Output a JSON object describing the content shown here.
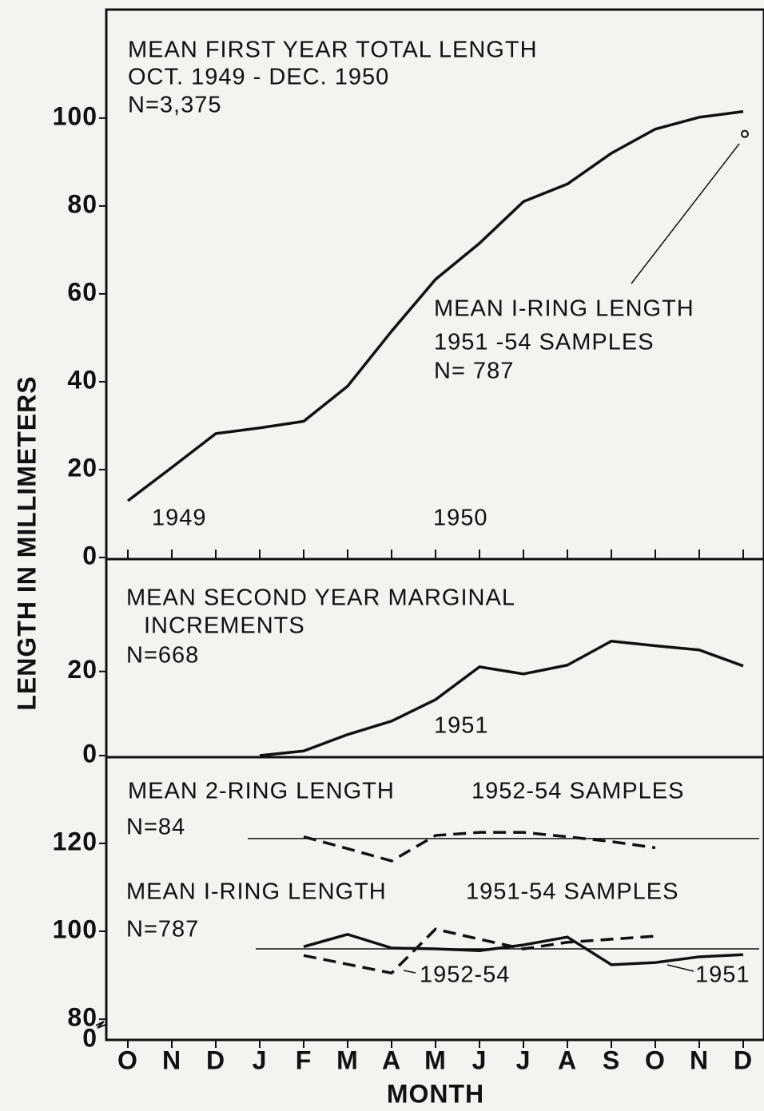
{
  "chart_data": [
    {
      "type": "line",
      "title": [
        "MEAN FIRST YEAR TOTAL LENGTH",
        "OCT. 1949 - DEC. 1950",
        "N=3,375"
      ],
      "ylim": [
        0,
        124.7
      ],
      "yticks": [
        0,
        20,
        40,
        60,
        80,
        100
      ],
      "series": [
        {
          "color": "#111111",
          "style": "solid",
          "values": [
            12.9,
            20.5,
            28.2,
            29.5,
            31,
            39,
            51.5,
            63.3,
            71.5,
            81,
            85,
            92,
            97.5,
            100.2,
            101.5
          ]
        },
        {
          "name": [
            "MEAN I-RING LENGTH",
            "1951 -54 SAMPLES",
            "N= 787"
          ],
          "color": "#111111",
          "style": "circle",
          "values": [
            null,
            null,
            null,
            null,
            null,
            null,
            null,
            null,
            null,
            null,
            null,
            null,
            null,
            null,
            96.4
          ]
        }
      ],
      "annotations": [
        "1949",
        "1950"
      ]
    },
    {
      "type": "line",
      "title": [
        "MEAN SECOND YEAR MARGINAL",
        "INCREMENTS",
        "N=668"
      ],
      "ylim": [
        0,
        46.7
      ],
      "yticks": [
        0,
        20
      ],
      "series": [
        {
          "color": "#111111",
          "style": "solid",
          "values": [
            null,
            null,
            null,
            0,
            1.1,
            5,
            8.2,
            13.3,
            21.1,
            19.4,
            21.5,
            27.2,
            26.1,
            25.1,
            21.3
          ]
        }
      ],
      "annotations": [
        "1951"
      ]
    },
    {
      "type": "line",
      "title": [
        "MEAN 2-RING LENGTH",
        "1952-54 SAMPLES",
        "N=84",
        "MEAN I-RING LENGTH",
        "1951-54 SAMPLES",
        "N=787"
      ],
      "categories": [
        "O",
        "N",
        "D",
        "J",
        "F",
        "M",
        "A",
        "M",
        "J",
        "J",
        "A",
        "S",
        "O",
        "N",
        "D"
      ],
      "x_label": "MONTH",
      "y_label": "LENGTH IN MILLIMETERS",
      "ylim": [
        75.3,
        139.6
      ],
      "yticks": [
        80,
        100,
        120
      ],
      "axis_break_label": "0",
      "mean_lines": [
        121.1,
        96
      ],
      "series": [
        {
          "color": "#111111",
          "style": "dashed",
          "values": [
            null,
            null,
            null,
            null,
            121.5,
            118.8,
            116,
            121.8,
            122.5,
            122.5,
            121.5,
            120.4,
            119,
            null,
            null
          ]
        },
        {
          "name": "1951",
          "color": "#111111",
          "style": "solid",
          "values": [
            null,
            null,
            null,
            null,
            96.5,
            99.3,
            96.2,
            96,
            95.6,
            96.9,
            98.7,
            92.4,
            92.9,
            94.2,
            94.7
          ]
        },
        {
          "name": "1952-54",
          "color": "#111111",
          "style": "dashed",
          "values": [
            null,
            null,
            null,
            null,
            94.5,
            92.5,
            90.5,
            100.5,
            98.2,
            96,
            97.5,
            98.2,
            98.9,
            null,
            null
          ]
        }
      ]
    }
  ]
}
